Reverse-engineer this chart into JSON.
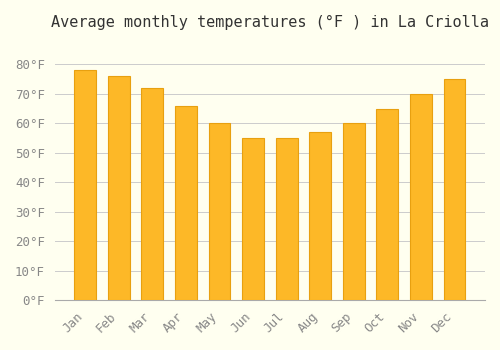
{
  "title": "Average monthly temperatures (°F ) in La Criolla",
  "months": [
    "Jan",
    "Feb",
    "Mar",
    "Apr",
    "May",
    "Jun",
    "Jul",
    "Aug",
    "Sep",
    "Oct",
    "Nov",
    "Dec"
  ],
  "values": [
    78,
    76,
    72,
    66,
    60,
    55,
    55,
    57,
    60,
    65,
    70,
    75
  ],
  "bar_color": "#FDB827",
  "bar_edge_color": "#E8A010",
  "background_color": "#FFFFF0",
  "grid_color": "#CCCCCC",
  "ylim": [
    0,
    88
  ],
  "ytick_step": 10,
  "title_fontsize": 11,
  "tick_fontsize": 9,
  "font_family": "monospace"
}
